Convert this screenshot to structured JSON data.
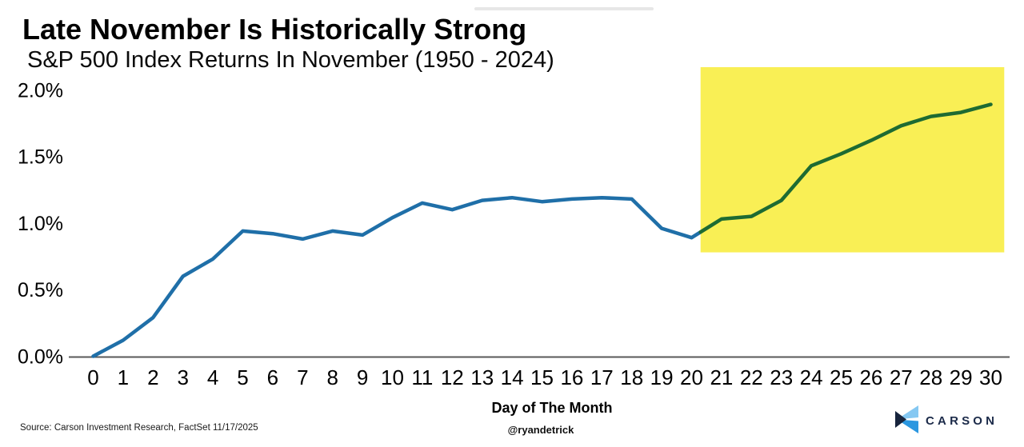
{
  "header": {
    "title": "Late November Is Historically Strong",
    "subtitle": "S&P 500 Index Returns In November (1950 - 2024)"
  },
  "chart_data": {
    "type": "line",
    "title": "Late November Is Historically Strong",
    "subtitle": "S&P 500 Index Returns In November (1950 - 2024)",
    "xlabel": "Day of The Month",
    "ylabel": "",
    "x": [
      0,
      1,
      2,
      3,
      4,
      5,
      6,
      7,
      8,
      9,
      10,
      11,
      12,
      13,
      14,
      15,
      16,
      17,
      18,
      19,
      20,
      21,
      22,
      23,
      24,
      25,
      26,
      27,
      28,
      29,
      30
    ],
    "values": [
      0.0,
      0.12,
      0.29,
      0.6,
      0.73,
      0.94,
      0.92,
      0.88,
      0.94,
      0.91,
      1.04,
      1.15,
      1.1,
      1.17,
      1.19,
      1.16,
      1.18,
      1.19,
      1.18,
      0.96,
      0.89,
      1.03,
      1.05,
      1.17,
      1.43,
      1.52,
      1.62,
      1.73,
      1.8,
      1.83,
      1.89
    ],
    "series": [
      {
        "name": "avg-return-days-0-20",
        "color": "#1f6fa8",
        "x_range": [
          0,
          20.3
        ]
      },
      {
        "name": "avg-return-days-20-30",
        "color": "#1e6b32",
        "x_range": [
          20.3,
          30
        ]
      }
    ],
    "y_ticks": [
      "0.0%",
      "0.5%",
      "1.0%",
      "1.5%",
      "2.0%"
    ],
    "y_tick_values": [
      0,
      0.5,
      1.0,
      1.5,
      2.0
    ],
    "ylim": [
      0,
      2.0
    ],
    "xlim": [
      0,
      30
    ],
    "grid": false,
    "legend": "none",
    "highlight_region": {
      "x_start": 20.3,
      "x_end": 30.45,
      "y_start": 0.78,
      "y_end": 2.17,
      "color": "#f9ef55"
    },
    "axis_color": "#595959"
  },
  "footer": {
    "source": "Source: Carson Investment Research, FactSet 11/17/2025",
    "handle": "@ryandetrick",
    "brand": "CARSON"
  },
  "colors": {
    "line_blue": "#1f6fa8",
    "line_green": "#1e6b32",
    "highlight_yellow": "#f9ef55",
    "brand_navy": "#1b2a49",
    "brand_blue": "#2b97e0",
    "brand_light_blue": "#85c8f2"
  }
}
